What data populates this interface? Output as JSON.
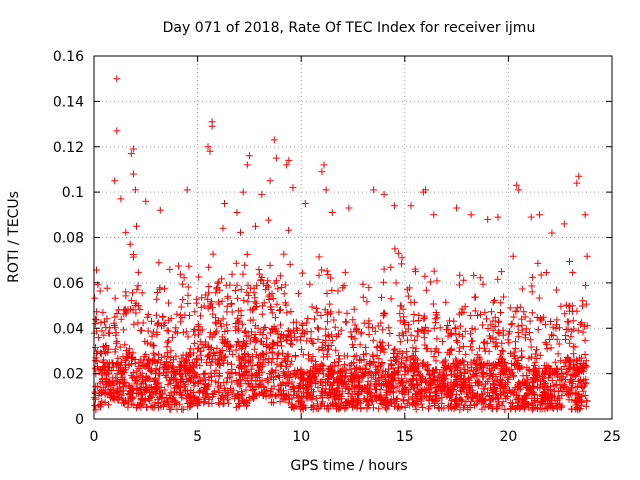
{
  "chart_data": {
    "type": "scatter",
    "title": "Day 071 of 2018, Rate Of TEC Index for receiver ijmu",
    "xlabel": "GPS time / hours",
    "ylabel": "ROTI / TECUs",
    "xlim": [
      0,
      25
    ],
    "ylim": [
      0,
      0.16
    ],
    "xticks": [
      0,
      5,
      10,
      15,
      20,
      25
    ],
    "xtick_labels": [
      "0",
      "5",
      "10",
      "15",
      "20",
      "25"
    ],
    "yticks": [
      0,
      0.02,
      0.04,
      0.06,
      0.08,
      0.1,
      0.12,
      0.14,
      0.16
    ],
    "ytick_labels": [
      "0",
      "0.02",
      "0.04",
      "0.06",
      "0.08",
      "0.1",
      "0.12",
      "0.14",
      "0.16"
    ],
    "grid": true,
    "marker": "+",
    "color": "#ff0000",
    "series": [
      {
        "name": "ROTI",
        "points": [
          [
            1.1,
            0.15
          ],
          [
            1.1,
            0.127
          ],
          [
            1.9,
            0.119
          ],
          [
            1.8,
            0.117
          ],
          [
            1.9,
            0.108
          ],
          [
            5.7,
            0.131
          ],
          [
            5.7,
            0.129
          ],
          [
            5.5,
            0.12
          ],
          [
            5.6,
            0.118
          ],
          [
            4.5,
            0.101
          ],
          [
            7.5,
            0.116
          ],
          [
            7.4,
            0.112
          ],
          [
            8.7,
            0.123
          ],
          [
            8.8,
            0.115
          ],
          [
            9.4,
            0.114
          ],
          [
            9.3,
            0.112
          ],
          [
            9.6,
            0.102
          ],
          [
            11.1,
            0.112
          ],
          [
            11.0,
            0.109
          ],
          [
            11.2,
            0.101
          ],
          [
            13.5,
            0.101
          ],
          [
            14.0,
            0.099
          ],
          [
            16.0,
            0.101
          ],
          [
            15.9,
            0.1
          ],
          [
            17.5,
            0.093
          ],
          [
            20.4,
            0.103
          ],
          [
            20.5,
            0.101
          ],
          [
            21.1,
            0.089
          ],
          [
            23.4,
            0.107
          ],
          [
            23.3,
            0.104
          ],
          [
            23.7,
            0.09
          ],
          [
            1.0,
            0.105
          ],
          [
            1.3,
            0.097
          ],
          [
            2.0,
            0.101
          ],
          [
            2.5,
            0.096
          ],
          [
            3.2,
            0.092
          ],
          [
            6.3,
            0.095
          ],
          [
            6.9,
            0.091
          ],
          [
            7.2,
            0.1
          ],
          [
            8.1,
            0.099
          ],
          [
            8.5,
            0.105
          ],
          [
            10.2,
            0.095
          ],
          [
            11.5,
            0.091
          ],
          [
            12.3,
            0.093
          ],
          [
            14.5,
            0.094
          ],
          [
            15.3,
            0.094
          ],
          [
            16.4,
            0.09
          ],
          [
            18.2,
            0.09
          ],
          [
            19.0,
            0.088
          ],
          [
            19.5,
            0.089
          ],
          [
            21.5,
            0.09
          ],
          [
            22.1,
            0.082
          ],
          [
            22.7,
            0.086
          ]
        ]
      }
    ],
    "density_bands": [
      {
        "x0": 0.0,
        "x1": 0.5,
        "ymin": 0.004,
        "ybase": 0.03,
        "ypeak": 0.066
      },
      {
        "x0": 0.5,
        "x1": 1.5,
        "ymin": 0.006,
        "ybase": 0.025,
        "ypeak": 0.072
      },
      {
        "x0": 1.5,
        "x1": 2.5,
        "ymin": 0.005,
        "ybase": 0.028,
        "ypeak": 0.085
      },
      {
        "x0": 2.5,
        "x1": 3.5,
        "ymin": 0.005,
        "ybase": 0.026,
        "ypeak": 0.07
      },
      {
        "x0": 3.5,
        "x1": 4.5,
        "ymin": 0.004,
        "ybase": 0.027,
        "ypeak": 0.068
      },
      {
        "x0": 4.5,
        "x1": 5.5,
        "ymin": 0.005,
        "ybase": 0.03,
        "ypeak": 0.08
      },
      {
        "x0": 5.5,
        "x1": 6.5,
        "ymin": 0.006,
        "ybase": 0.034,
        "ypeak": 0.09
      },
      {
        "x0": 6.5,
        "x1": 7.5,
        "ymin": 0.005,
        "ybase": 0.033,
        "ypeak": 0.085
      },
      {
        "x0": 7.5,
        "x1": 8.5,
        "ymin": 0.008,
        "ybase": 0.038,
        "ypeak": 0.09
      },
      {
        "x0": 8.5,
        "x1": 9.5,
        "ymin": 0.007,
        "ybase": 0.04,
        "ypeak": 0.092
      },
      {
        "x0": 9.5,
        "x1": 10.5,
        "ymin": 0.004,
        "ybase": 0.022,
        "ypeak": 0.065
      },
      {
        "x0": 10.5,
        "x1": 11.5,
        "ymin": 0.004,
        "ybase": 0.024,
        "ypeak": 0.075
      },
      {
        "x0": 11.5,
        "x1": 12.5,
        "ymin": 0.004,
        "ybase": 0.025,
        "ypeak": 0.07
      },
      {
        "x0": 12.5,
        "x1": 13.5,
        "ymin": 0.004,
        "ybase": 0.024,
        "ypeak": 0.062
      },
      {
        "x0": 13.5,
        "x1": 14.5,
        "ymin": 0.004,
        "ybase": 0.026,
        "ypeak": 0.07
      },
      {
        "x0": 14.5,
        "x1": 15.5,
        "ymin": 0.004,
        "ybase": 0.028,
        "ypeak": 0.075
      },
      {
        "x0": 15.5,
        "x1": 16.5,
        "ymin": 0.004,
        "ybase": 0.025,
        "ypeak": 0.068
      },
      {
        "x0": 16.5,
        "x1": 17.5,
        "ymin": 0.004,
        "ybase": 0.024,
        "ypeak": 0.065
      },
      {
        "x0": 17.5,
        "x1": 18.5,
        "ymin": 0.004,
        "ybase": 0.026,
        "ypeak": 0.072
      },
      {
        "x0": 18.5,
        "x1": 19.5,
        "ymin": 0.004,
        "ybase": 0.025,
        "ypeak": 0.07
      },
      {
        "x0": 19.5,
        "x1": 20.5,
        "ymin": 0.004,
        "ybase": 0.026,
        "ypeak": 0.074
      },
      {
        "x0": 20.5,
        "x1": 21.5,
        "ymin": 0.004,
        "ybase": 0.025,
        "ypeak": 0.07
      },
      {
        "x0": 21.5,
        "x1": 22.5,
        "ymin": 0.004,
        "ybase": 0.024,
        "ypeak": 0.066
      },
      {
        "x0": 22.5,
        "x1": 23.8,
        "ymin": 0.004,
        "ybase": 0.027,
        "ypeak": 0.075
      }
    ],
    "density_points_per_hour": 130
  }
}
